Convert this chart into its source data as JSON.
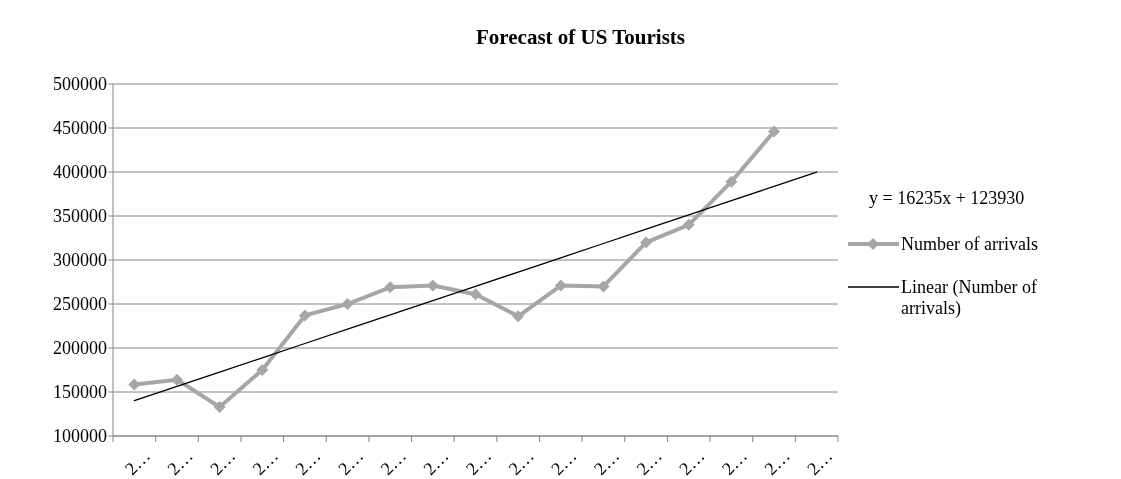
{
  "chart_data": {
    "type": "line",
    "title": "Forecast of US Tourists",
    "categories": [
      "2…",
      "2…",
      "2…",
      "2…",
      "2…",
      "2…",
      "2…",
      "2…",
      "2…",
      "2…",
      "2…",
      "2…",
      "2…",
      "2…",
      "2…",
      "2…",
      "2…"
    ],
    "series": [
      {
        "name": "Number of arrivals",
        "color": "#a6a6a6",
        "marker": "diamond",
        "values": [
          158500,
          164000,
          133000,
          175000,
          237000,
          250000,
          269000,
          271000,
          261000,
          236000,
          271000,
          270000,
          320000,
          340000,
          389000,
          446000,
          null
        ]
      },
      {
        "name": "Linear (Number of arrivals)",
        "color": "#000000",
        "marker": "none",
        "values": [
          140165,
          156400,
          172635,
          188870,
          205105,
          221340,
          237575,
          253810,
          270045,
          286280,
          302515,
          318750,
          334985,
          351220,
          367455,
          383690,
          399925
        ]
      }
    ],
    "ylim": [
      100000,
      500000
    ],
    "yticks": [
      100000,
      150000,
      200000,
      250000,
      300000,
      350000,
      400000,
      450000,
      500000
    ],
    "grid": "y",
    "legend": "right",
    "annotations": [
      "y = 16235x + 123930"
    ]
  }
}
